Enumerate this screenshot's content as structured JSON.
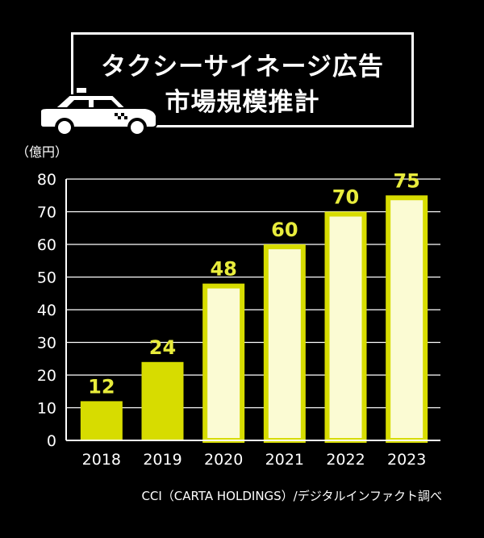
{
  "title_lines": [
    "タクシーサイネージ広告",
    "市場規模推計"
  ],
  "icons": {
    "title_icon": "taxi-icon"
  },
  "colors": {
    "background": "#000000",
    "bar_actual": "#d7dc00",
    "bar_estimate_fill": "#fbfbd3",
    "bar_estimate_border": "#d7dc00",
    "label_color": "#e8ec3c",
    "grid": "#ffffff"
  },
  "chart_data": {
    "type": "bar",
    "title": "タクシーサイネージ広告 市場規模推計",
    "ylabel": "（億円）",
    "xlabel": "",
    "categories": [
      "2018",
      "2019",
      "2020",
      "2021",
      "2022",
      "2023"
    ],
    "values": [
      12,
      24,
      48,
      60,
      70,
      75
    ],
    "bar_style": [
      "solid",
      "solid",
      "outlined",
      "outlined",
      "outlined",
      "outlined"
    ],
    "ylim": [
      0,
      80
    ],
    "yticks": [
      0,
      10,
      20,
      30,
      40,
      50,
      60,
      70,
      80
    ],
    "grid": true,
    "data_labels": true,
    "legend": "none"
  },
  "source_text": "CCI（CARTA HOLDINGS）/デジタルインファクト調べ"
}
